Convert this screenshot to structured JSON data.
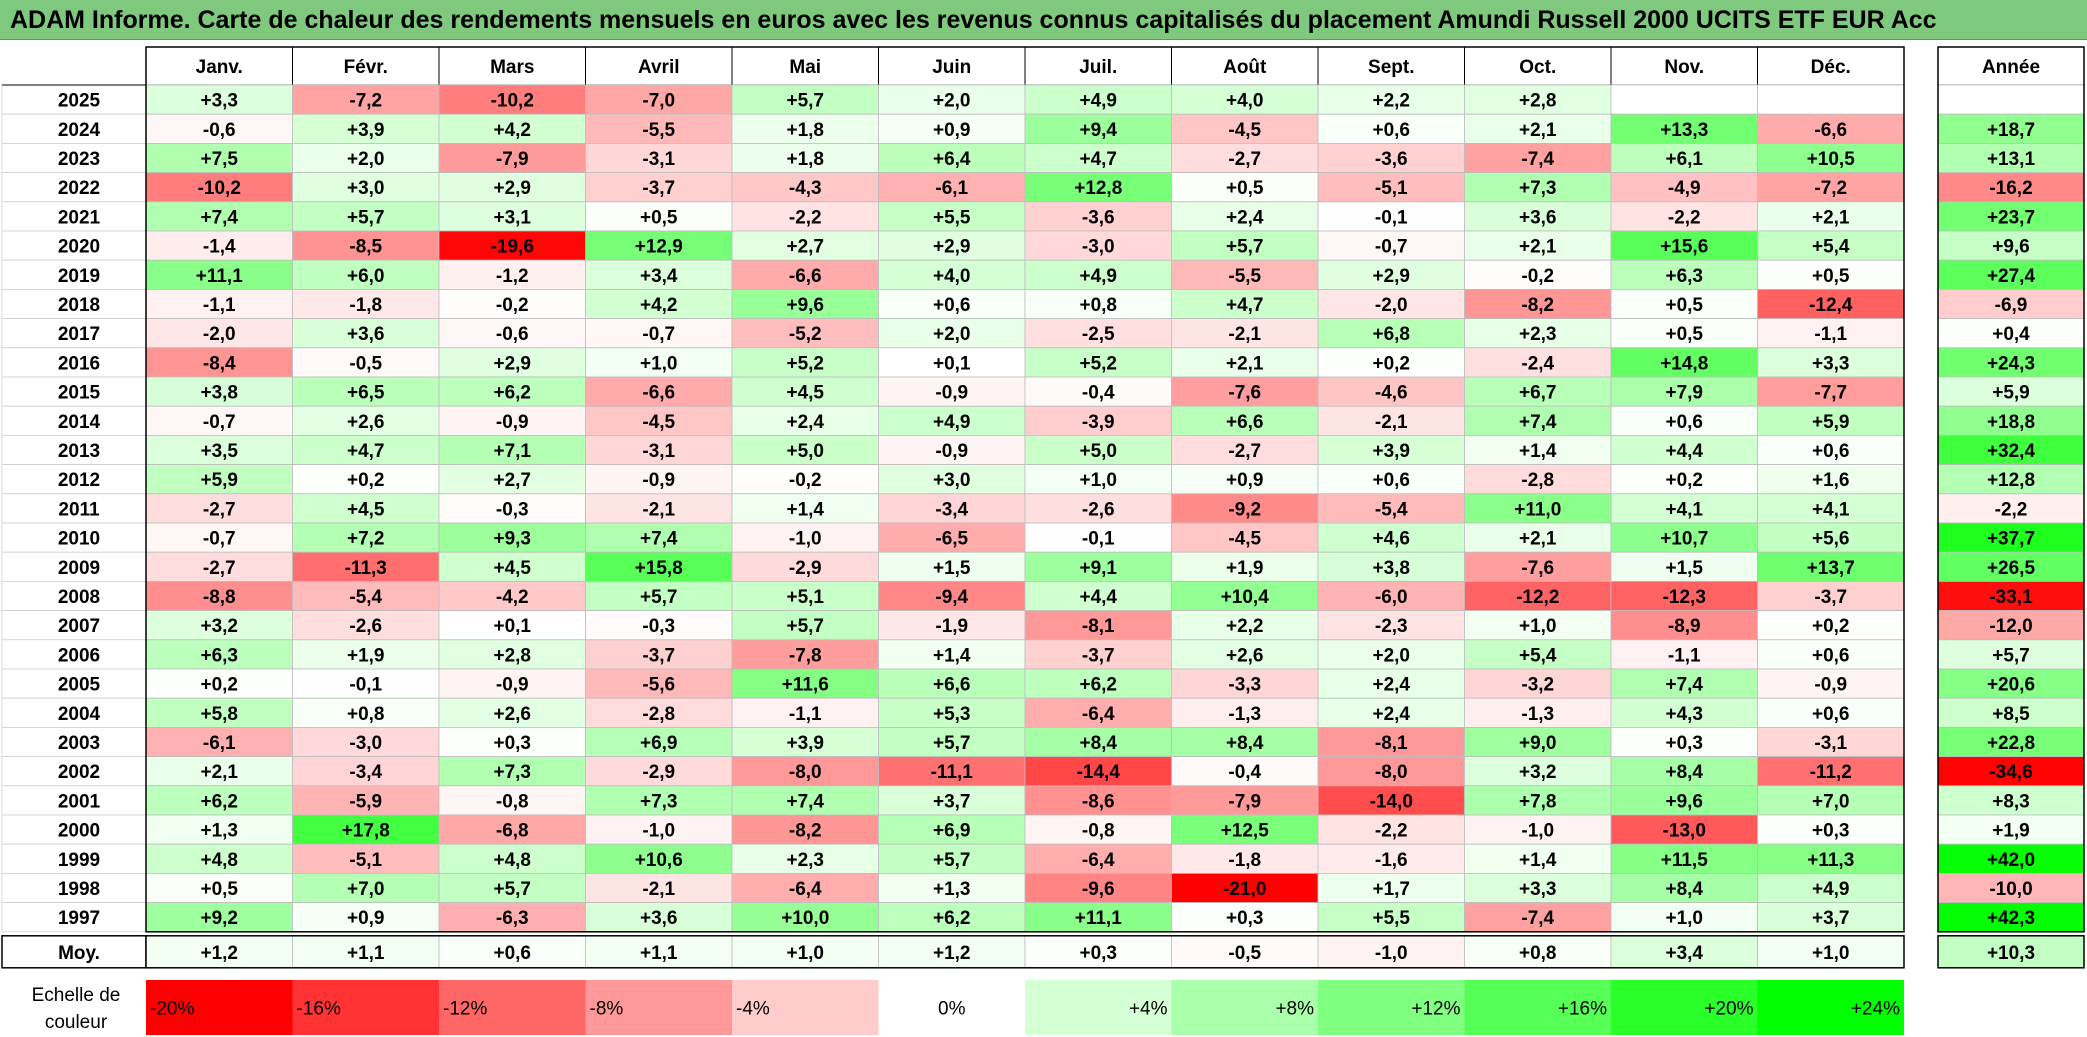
{
  "title": "ADAM Informe. Carte de chaleur des rendements mensuels en euros avec les revenus connus capitalisés du placement Amundi Russell 2000 UCITS ETF EUR Acc",
  "chart_data": {
    "type": "heatmap",
    "months": [
      "Janv.",
      "Févr.",
      "Mars",
      "Avril",
      "Mai",
      "Juin",
      "Juil.",
      "Août",
      "Sept.",
      "Oct.",
      "Nov.",
      "Déc."
    ],
    "year_header": "Année",
    "rows": [
      {
        "year": "2025",
        "values": [
          "+3,3",
          "-7,2",
          "-10,2",
          "-7,0",
          "+5,7",
          "+2,0",
          "+4,9",
          "+4,0",
          "+2,2",
          "+2,8",
          "",
          ""
        ],
        "annual": ""
      },
      {
        "year": "2024",
        "values": [
          "-0,6",
          "+3,9",
          "+4,2",
          "-5,5",
          "+1,8",
          "+0,9",
          "+9,4",
          "-4,5",
          "+0,6",
          "+2,1",
          "+13,3",
          "-6,6"
        ],
        "annual": "+18,7"
      },
      {
        "year": "2023",
        "values": [
          "+7,5",
          "+2,0",
          "-7,9",
          "-3,1",
          "+1,8",
          "+6,4",
          "+4,7",
          "-2,7",
          "-3,6",
          "-7,4",
          "+6,1",
          "+10,5"
        ],
        "annual": "+13,1"
      },
      {
        "year": "2022",
        "values": [
          "-10,2",
          "+3,0",
          "+2,9",
          "-3,7",
          "-4,3",
          "-6,1",
          "+12,8",
          "+0,5",
          "-5,1",
          "+7,3",
          "-4,9",
          "-7,2"
        ],
        "annual": "-16,2"
      },
      {
        "year": "2021",
        "values": [
          "+7,4",
          "+5,7",
          "+3,1",
          "+0,5",
          "-2,2",
          "+5,5",
          "-3,6",
          "+2,4",
          "-0,1",
          "+3,6",
          "-2,2",
          "+2,1"
        ],
        "annual": "+23,7"
      },
      {
        "year": "2020",
        "values": [
          "-1,4",
          "-8,5",
          "-19,6",
          "+12,9",
          "+2,7",
          "+2,9",
          "-3,0",
          "+5,7",
          "-0,7",
          "+2,1",
          "+15,6",
          "+5,4"
        ],
        "annual": "+9,6"
      },
      {
        "year": "2019",
        "values": [
          "+11,1",
          "+6,0",
          "-1,2",
          "+3,4",
          "-6,6",
          "+4,0",
          "+4,9",
          "-5,5",
          "+2,9",
          "-0,2",
          "+6,3",
          "+0,5"
        ],
        "annual": "+27,4"
      },
      {
        "year": "2018",
        "values": [
          "-1,1",
          "-1,8",
          "-0,2",
          "+4,2",
          "+9,6",
          "+0,6",
          "+0,8",
          "+4,7",
          "-2,0",
          "-8,2",
          "+0,5",
          "-12,4"
        ],
        "annual": "-6,9"
      },
      {
        "year": "2017",
        "values": [
          "-2,0",
          "+3,6",
          "-0,6",
          "-0,7",
          "-5,2",
          "+2,0",
          "-2,5",
          "-2,1",
          "+6,8",
          "+2,3",
          "+0,5",
          "-1,1"
        ],
        "annual": "+0,4"
      },
      {
        "year": "2016",
        "values": [
          "-8,4",
          "-0,5",
          "+2,9",
          "+1,0",
          "+5,2",
          "+0,1",
          "+5,2",
          "+2,1",
          "+0,2",
          "-2,4",
          "+14,8",
          "+3,3"
        ],
        "annual": "+24,3"
      },
      {
        "year": "2015",
        "values": [
          "+3,8",
          "+6,5",
          "+6,2",
          "-6,6",
          "+4,5",
          "-0,9",
          "-0,4",
          "-7,6",
          "-4,6",
          "+6,7",
          "+7,9",
          "-7,7"
        ],
        "annual": "+5,9"
      },
      {
        "year": "2014",
        "values": [
          "-0,7",
          "+2,6",
          "-0,9",
          "-4,5",
          "+2,4",
          "+4,9",
          "-3,9",
          "+6,6",
          "-2,1",
          "+7,4",
          "+0,6",
          "+5,9"
        ],
        "annual": "+18,8"
      },
      {
        "year": "2013",
        "values": [
          "+3,5",
          "+4,7",
          "+7,1",
          "-3,1",
          "+5,0",
          "-0,9",
          "+5,0",
          "-2,7",
          "+3,9",
          "+1,4",
          "+4,4",
          "+0,6"
        ],
        "annual": "+32,4"
      },
      {
        "year": "2012",
        "values": [
          "+5,9",
          "+0,2",
          "+2,7",
          "-0,9",
          "-0,2",
          "+3,0",
          "+1,0",
          "+0,9",
          "+0,6",
          "-2,8",
          "+0,2",
          "+1,6"
        ],
        "annual": "+12,8"
      },
      {
        "year": "2011",
        "values": [
          "-2,7",
          "+4,5",
          "-0,3",
          "-2,1",
          "+1,4",
          "-3,4",
          "-2,6",
          "-9,2",
          "-5,4",
          "+11,0",
          "+4,1",
          "+4,1"
        ],
        "annual": "-2,2"
      },
      {
        "year": "2010",
        "values": [
          "-0,7",
          "+7,2",
          "+9,3",
          "+7,4",
          "-1,0",
          "-6,5",
          "-0,1",
          "-4,5",
          "+4,6",
          "+2,1",
          "+10,7",
          "+5,6"
        ],
        "annual": "+37,7"
      },
      {
        "year": "2009",
        "values": [
          "-2,7",
          "-11,3",
          "+4,5",
          "+15,8",
          "-2,9",
          "+1,5",
          "+9,1",
          "+1,9",
          "+3,8",
          "-7,6",
          "+1,5",
          "+13,7"
        ],
        "annual": "+26,5"
      },
      {
        "year": "2008",
        "values": [
          "-8,8",
          "-5,4",
          "-4,2",
          "+5,7",
          "+5,1",
          "-9,4",
          "+4,4",
          "+10,4",
          "-6,0",
          "-12,2",
          "-12,3",
          "-3,7"
        ],
        "annual": "-33,1"
      },
      {
        "year": "2007",
        "values": [
          "+3,2",
          "-2,6",
          "+0,1",
          "-0,3",
          "+5,7",
          "-1,9",
          "-8,1",
          "+2,2",
          "-2,3",
          "+1,0",
          "-8,9",
          "+0,2"
        ],
        "annual": "-12,0"
      },
      {
        "year": "2006",
        "values": [
          "+6,3",
          "+1,9",
          "+2,8",
          "-3,7",
          "-7,8",
          "+1,4",
          "-3,7",
          "+2,6",
          "+2,0",
          "+5,4",
          "-1,1",
          "+0,6"
        ],
        "annual": "+5,7"
      },
      {
        "year": "2005",
        "values": [
          "+0,2",
          "-0,1",
          "-0,9",
          "-5,6",
          "+11,6",
          "+6,6",
          "+6,2",
          "-3,3",
          "+2,4",
          "-3,2",
          "+7,4",
          "-0,9"
        ],
        "annual": "+20,6"
      },
      {
        "year": "2004",
        "values": [
          "+5,8",
          "+0,8",
          "+2,6",
          "-2,8",
          "-1,1",
          "+5,3",
          "-6,4",
          "-1,3",
          "+2,4",
          "-1,3",
          "+4,3",
          "+0,6"
        ],
        "annual": "+8,5"
      },
      {
        "year": "2003",
        "values": [
          "-6,1",
          "-3,0",
          "+0,3",
          "+6,9",
          "+3,9",
          "+5,7",
          "+8,4",
          "+8,4",
          "-8,1",
          "+9,0",
          "+0,3",
          "-3,1"
        ],
        "annual": "+22,8"
      },
      {
        "year": "2002",
        "values": [
          "+2,1",
          "-3,4",
          "+7,3",
          "-2,9",
          "-8,0",
          "-11,1",
          "-14,4",
          "-0,4",
          "-8,0",
          "+3,2",
          "+8,4",
          "-11,2"
        ],
        "annual": "-34,6"
      },
      {
        "year": "2001",
        "values": [
          "+6,2",
          "-5,9",
          "-0,8",
          "+7,3",
          "+7,4",
          "+3,7",
          "-8,6",
          "-7,9",
          "-14,0",
          "+7,8",
          "+9,6",
          "+7,0"
        ],
        "annual": "+8,3"
      },
      {
        "year": "2000",
        "values": [
          "+1,3",
          "+17,8",
          "-6,8",
          "-1,0",
          "-8,2",
          "+6,9",
          "-0,8",
          "+12,5",
          "-2,2",
          "-1,0",
          "-13,0",
          "+0,3"
        ],
        "annual": "+1,9"
      },
      {
        "year": "1999",
        "values": [
          "+4,8",
          "-5,1",
          "+4,8",
          "+10,6",
          "+2,3",
          "+5,7",
          "-6,4",
          "-1,8",
          "-1,6",
          "+1,4",
          "+11,5",
          "+11,3"
        ],
        "annual": "+42,0"
      },
      {
        "year": "1998",
        "values": [
          "+0,5",
          "+7,0",
          "+5,7",
          "-2,1",
          "-6,4",
          "+1,3",
          "-9,6",
          "-21,0",
          "+1,7",
          "+3,3",
          "+8,4",
          "+4,9"
        ],
        "annual": "-10,0"
      },
      {
        "year": "1997",
        "values": [
          "+9,2",
          "+0,9",
          "-6,3",
          "+3,6",
          "+10,0",
          "+6,2",
          "+11,1",
          "+0,3",
          "+5,5",
          "-7,4",
          "+1,0",
          "+3,7"
        ],
        "annual": "+42,3"
      }
    ],
    "average": {
      "label": "Moy.",
      "values": [
        "+1,2",
        "+1,1",
        "+0,6",
        "+1,1",
        "+1,0",
        "+1,2",
        "+0,3",
        "-0,5",
        "-1,0",
        "+0,8",
        "+3,4",
        "+1,0"
      ],
      "annual": "+10,3"
    },
    "color_scale": {
      "label_line1": "Echelle de",
      "label_line2": "couleur",
      "stops": [
        "-20%",
        "-16%",
        "-12%",
        "-8%",
        "-4%",
        "0%",
        "+4%",
        "+8%",
        "+12%",
        "+16%",
        "+20%",
        "+24%"
      ],
      "stop_values": [
        -20,
        -16,
        -12,
        -8,
        -4,
        0,
        4,
        8,
        12,
        16,
        20,
        24
      ]
    },
    "colors": {
      "negative_max": "#ff0000",
      "positive_max": "#00ff00",
      "neutral": "#ffffff",
      "title_background": "#7fc97f"
    }
  }
}
